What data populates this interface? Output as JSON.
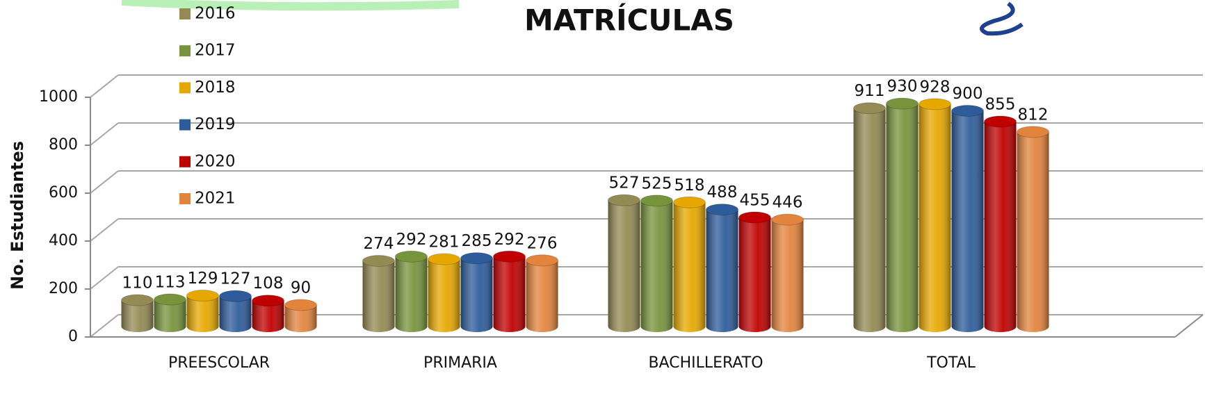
{
  "chart_data": {
    "type": "bar",
    "title": "MATRÍCULAS",
    "y_label": "No. Estudiantes",
    "categories": [
      "PREESCOLAR",
      "PRIMARIA",
      "BACHILLERATO",
      "TOTAL"
    ],
    "series": [
      {
        "name": "2016",
        "color": "#948a54",
        "values": [
          110,
          274,
          527,
          911
        ]
      },
      {
        "name": "2017",
        "color": "#77933c",
        "values": [
          113,
          292,
          525,
          930
        ]
      },
      {
        "name": "2018",
        "color": "#e6a800",
        "values": [
          129,
          281,
          518,
          928
        ]
      },
      {
        "name": "2019",
        "color": "#2e5c9a",
        "values": [
          127,
          285,
          488,
          900
        ]
      },
      {
        "name": "2020",
        "color": "#c00000",
        "values": [
          108,
          292,
          455,
          855
        ]
      },
      {
        "name": "2021",
        "color": "#e2843c",
        "values": [
          90,
          276,
          446,
          812
        ]
      }
    ],
    "ylim": [
      0,
      1000
    ],
    "yticks": [
      0,
      200,
      400,
      600,
      800,
      1000
    ],
    "grid": true
  }
}
